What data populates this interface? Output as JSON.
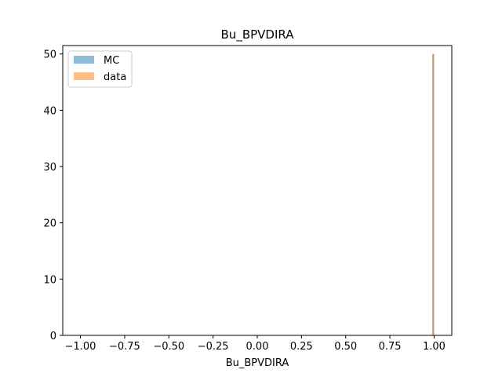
{
  "chart_data": {
    "type": "bar",
    "title": "Bu_BPVDIRA",
    "xlabel": "Bu_BPVDIRA",
    "ylabel": "",
    "xlim": [
      -1.1,
      1.1
    ],
    "ylim": [
      0,
      51.5
    ],
    "x_ticks": [
      -1.0,
      -0.75,
      -0.5,
      -0.25,
      0.0,
      0.25,
      0.5,
      0.75,
      1.0
    ],
    "x_tick_labels": [
      "−1.00",
      "−0.75",
      "−0.50",
      "−0.25",
      "0.00",
      "0.25",
      "0.50",
      "0.75",
      "1.00"
    ],
    "y_ticks": [
      0,
      10,
      20,
      30,
      40,
      50
    ],
    "y_tick_labels": [
      "0",
      "10",
      "20",
      "30",
      "40",
      "50"
    ],
    "grid": false,
    "legend_position": "top-left",
    "series": [
      {
        "name": "MC",
        "color": "#1f77b4",
        "opacity": 0.5,
        "bins": [
          [
            0.99,
            1.0
          ]
        ],
        "values": [
          50
        ]
      },
      {
        "name": "data",
        "color": "#ff7f0e",
        "opacity": 0.5,
        "bins": [
          [
            0.99,
            1.0
          ]
        ],
        "values": [
          50
        ]
      }
    ]
  }
}
